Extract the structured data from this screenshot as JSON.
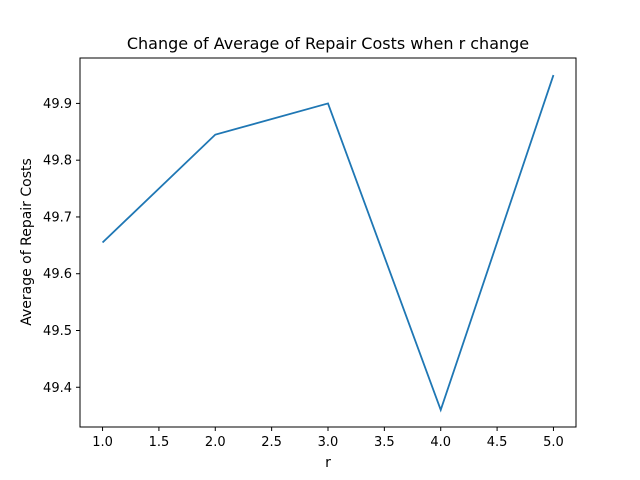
{
  "chart_data": {
    "type": "line",
    "title": "Change of Average of Repair Costs when r change",
    "xlabel": "r",
    "ylabel": "Average of Repair Costs",
    "x": [
      1.0,
      2.0,
      3.0,
      4.0,
      5.0
    ],
    "series": [
      {
        "values": [
          49.655,
          49.845,
          49.9,
          49.36,
          49.95
        ],
        "color": "#1f77b4"
      }
    ],
    "xlim": [
      0.8,
      5.2
    ],
    "ylim": [
      49.33,
      49.98
    ],
    "xticks": [
      "1.0",
      "1.5",
      "2.0",
      "2.5",
      "3.0",
      "3.5",
      "4.0",
      "4.5",
      "5.0"
    ],
    "yticks": [
      "49.4",
      "49.5",
      "49.6",
      "49.7",
      "49.8",
      "49.9"
    ],
    "grid": false,
    "legend": "none"
  }
}
